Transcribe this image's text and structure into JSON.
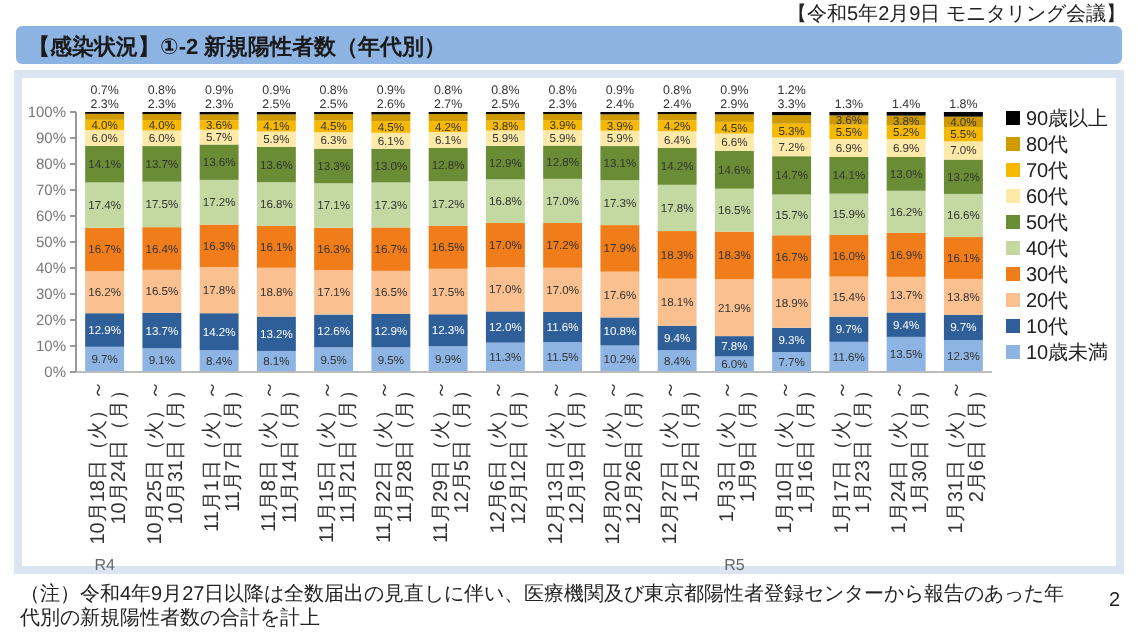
{
  "chart_data": {
    "type": "bar",
    "stacked": true,
    "title": "【感染状況】①-2 新規陽性者数（年代別）",
    "categories": [
      "10月18日（火）～\n10月24日（月）",
      "10月25日（火）～\n10月31日（月）",
      "11月1日（火）～\n11月7日（月）",
      "11月8日（火）～\n11月14日（月）",
      "11月15日（火）～\n11月21日（月）",
      "11月22日（火）～\n11月28日（月）",
      "11月29日（火）～\n12月5日（月）",
      "12月6日（火）～\n12月12日（月）",
      "12月13日（火）～\n12月19日（月）",
      "12月20日（火）～\n12月26日（月）",
      "12月27日（火）～\n1月2日（月）",
      "1月3日（火）～\n1月9日（月）",
      "1月10日（火）～\n1月16日（月）",
      "1月17日（火）～\n1月23日（月）",
      "1月24日（火）～\n1月30日（月）",
      "1月31日（火）～\n2月6日（月）"
    ],
    "series": [
      {
        "name": "10歳未満",
        "color": "#8db4e2",
        "values": [
          9.7,
          9.1,
          8.4,
          8.1,
          9.5,
          9.5,
          9.9,
          11.3,
          11.5,
          10.2,
          8.4,
          6.0,
          7.7,
          11.6,
          13.5,
          12.3
        ],
        "value_labels": [
          "9.7%",
          "9.1%",
          "8.4%",
          "8.1%",
          "9.5%",
          "9.5%",
          "9.9%",
          "11.3%",
          "11.5%",
          "10.2%",
          "8.4%",
          "6.0%",
          "7.7%",
          "11.6%",
          "13.5%",
          "12.3%"
        ]
      },
      {
        "name": "10代",
        "color": "#2f5f98",
        "values": [
          12.9,
          13.7,
          14.2,
          13.2,
          12.6,
          12.9,
          12.3,
          12.0,
          11.6,
          10.8,
          9.4,
          7.8,
          9.3,
          9.7,
          9.4,
          9.7
        ],
        "value_labels": [
          "12.9%",
          "13.7%",
          "14.2%",
          "13.2%",
          "12.6%",
          "12.9%",
          "12.3%",
          "12.0%",
          "11.6%",
          "10.8%",
          "9.4%",
          "7.8%",
          "9.3%",
          "9.7%",
          "9.4%",
          "9.7%"
        ]
      },
      {
        "name": "20代",
        "color": "#fac090",
        "values": [
          16.2,
          16.5,
          17.8,
          18.8,
          17.1,
          16.5,
          17.5,
          17.0,
          17.0,
          17.6,
          18.1,
          21.9,
          18.9,
          15.4,
          13.7,
          13.8
        ],
        "value_labels": [
          "16.2%",
          "16.5%",
          "17.8%",
          "18.8%",
          "17.1%",
          "16.5%",
          "17.5%",
          "17.0%",
          "17.0%",
          "17.6%",
          "18.1%",
          "21.9%",
          "18.9%",
          "15.4%",
          "13.7%",
          "13.8%"
        ]
      },
      {
        "name": "30代",
        "color": "#f07d1a",
        "values": [
          16.7,
          16.4,
          16.3,
          16.1,
          16.3,
          16.7,
          16.5,
          17.0,
          17.2,
          17.9,
          18.3,
          18.3,
          16.7,
          16.0,
          16.9,
          16.1
        ],
        "value_labels": [
          "16.7%",
          "16.4%",
          "16.3%",
          "16.1%",
          "16.3%",
          "16.7%",
          "16.5%",
          "17.0%",
          "17.2%",
          "17.9%",
          "18.3%",
          "18.3%",
          "16.7%",
          "16.0%",
          "16.9%",
          "16.1%"
        ]
      },
      {
        "name": "40代",
        "color": "#c4d8a2",
        "values": [
          17.4,
          17.5,
          17.2,
          16.8,
          17.1,
          17.3,
          17.2,
          16.8,
          17.0,
          17.3,
          17.8,
          16.5,
          15.7,
          15.9,
          16.2,
          16.6
        ],
        "value_labels": [
          "17.4%",
          "17.5%",
          "17.2%",
          "16.8%",
          "17.1%",
          "17.3%",
          "17.2%",
          "16.8%",
          "17.0%",
          "17.3%",
          "17.8%",
          "16.5%",
          "15.7%",
          "15.9%",
          "16.2%",
          "16.6%"
        ]
      },
      {
        "name": "50代",
        "color": "#6a8c34",
        "values": [
          14.1,
          13.7,
          13.6,
          13.6,
          13.3,
          13.0,
          12.8,
          12.9,
          12.8,
          13.1,
          14.2,
          14.6,
          14.7,
          14.1,
          13.0,
          13.2
        ],
        "value_labels": [
          "14.1%",
          "13.7%",
          "13.6%",
          "13.6%",
          "13.3%",
          "13.0%",
          "12.8%",
          "12.9%",
          "12.8%",
          "13.1%",
          "14.2%",
          "14.6%",
          "14.7%",
          "14.1%",
          "13.0%",
          "13.2%"
        ]
      },
      {
        "name": "60代",
        "color": "#fde9a8",
        "values": [
          6.0,
          6.0,
          5.7,
          5.9,
          6.3,
          6.1,
          6.1,
          5.9,
          5.9,
          5.9,
          6.4,
          6.6,
          7.2,
          6.9,
          6.9,
          7.0
        ],
        "value_labels": [
          "6.0%",
          "6.0%",
          "5.7%",
          "5.9%",
          "6.3%",
          "6.1%",
          "6.1%",
          "5.9%",
          "5.9%",
          "5.9%",
          "6.4%",
          "6.6%",
          "7.2%",
          "6.9%",
          "6.9%",
          "7.0%"
        ]
      },
      {
        "name": "70代",
        "color": "#f7b800",
        "values": [
          4.0,
          4.0,
          3.6,
          4.1,
          4.5,
          4.5,
          4.2,
          3.8,
          3.9,
          3.9,
          4.2,
          4.5,
          5.3,
          5.5,
          5.2,
          5.5
        ],
        "value_labels": [
          "4.0%",
          "4.0%",
          "3.6%",
          "4.1%",
          "4.5%",
          "4.5%",
          "4.2%",
          "3.8%",
          "3.9%",
          "3.9%",
          "4.2%",
          "4.5%",
          "5.3%",
          "5.5%",
          "5.2%",
          "5.5%"
        ]
      },
      {
        "name": "80代",
        "color": "#cf9a00",
        "values": [
          2.3,
          2.3,
          2.3,
          2.5,
          2.5,
          2.6,
          2.7,
          2.5,
          2.3,
          2.4,
          2.4,
          2.9,
          3.3,
          3.6,
          3.8,
          4.0
        ],
        "value_labels": [
          "2.3%",
          "2.3%",
          "2.3%",
          "2.5%",
          "2.5%",
          "2.6%",
          "2.7%",
          "2.5%",
          "2.3%",
          "2.4%",
          "2.4%",
          "2.9%",
          "3.3%",
          "3.6%",
          "3.8%",
          "4.0%"
        ]
      },
      {
        "name": "90歳以上",
        "color": "#000000",
        "values": [
          0.7,
          0.8,
          0.9,
          0.9,
          0.8,
          0.9,
          0.8,
          0.8,
          0.8,
          0.9,
          0.8,
          0.9,
          1.2,
          1.3,
          1.4,
          1.8
        ],
        "value_labels": [
          "0.7%",
          "0.8%",
          "0.9%",
          "0.9%",
          "0.8%",
          "0.9%",
          "0.8%",
          "0.8%",
          "0.8%",
          "0.9%",
          "0.8%",
          "0.9%",
          "1.2%",
          "1.3%",
          "1.4%",
          "1.8%"
        ]
      }
    ],
    "ylim": [
      0,
      100
    ],
    "yticks": [
      {
        "value": 0,
        "label": "0%"
      },
      {
        "value": 10,
        "label": "10%"
      },
      {
        "value": 20,
        "label": "20%"
      },
      {
        "value": 30,
        "label": "30%"
      },
      {
        "value": 40,
        "label": "40%"
      },
      {
        "value": 50,
        "label": "50%"
      },
      {
        "value": 60,
        "label": "60%"
      },
      {
        "value": 70,
        "label": "70%"
      },
      {
        "value": 80,
        "label": "80%"
      },
      {
        "value": 90,
        "label": "90%"
      },
      {
        "value": 100,
        "label": "100%"
      }
    ],
    "legend": "right",
    "annotations": [
      "【令和5年2月9日 モニタリング会議】",
      "（注）令和4年9月27日以降は全数届出の見直しに伴い、医療機関及び東京都陽性者登録センターから報告のあった年代別の新規陽性者数の合計を計上",
      "2",
      "R4",
      "R5"
    ]
  }
}
